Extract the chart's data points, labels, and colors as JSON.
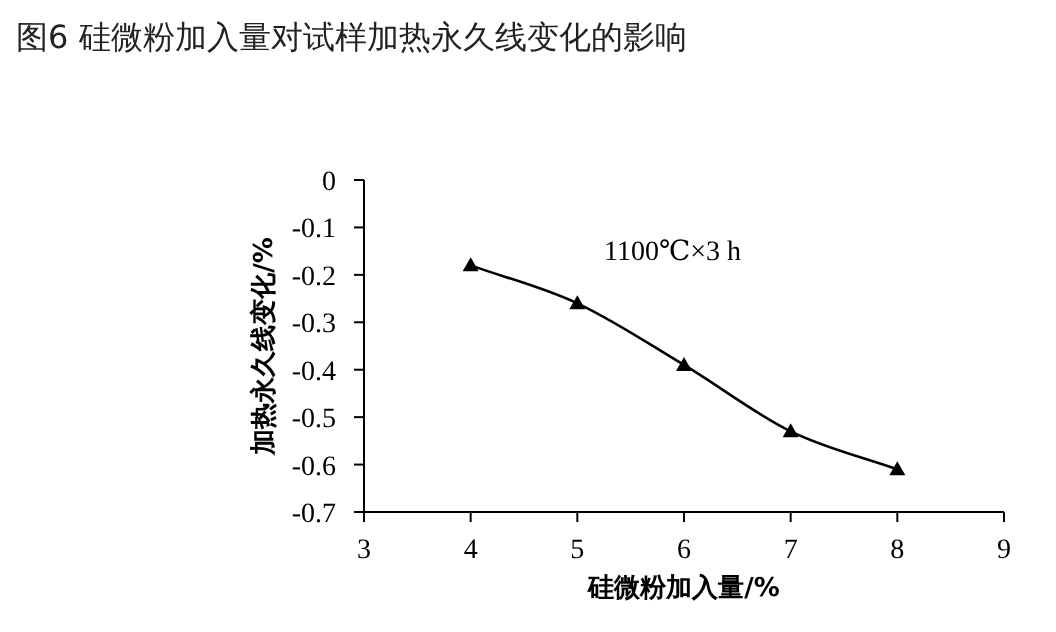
{
  "chart_data": {
    "type": "line",
    "title": "图6 硅微粉加入量对试样加热永久线变化的影响",
    "xlabel": "硅微粉加入量/%",
    "ylabel": "加热永久线变化/%",
    "annotations": [
      "1100℃×3 h"
    ],
    "x": [
      4,
      5,
      6,
      7,
      8
    ],
    "series": [
      {
        "color": "#000000",
        "values": [
          -0.18,
          -0.26,
          -0.39,
          -0.53,
          -0.61
        ]
      }
    ],
    "xlim": [
      3,
      9
    ],
    "xticks": [
      3,
      4,
      5,
      6,
      7,
      8,
      9
    ],
    "ylim": [
      -0.7,
      0
    ],
    "yticks": [
      0,
      -0.1,
      -0.2,
      -0.3,
      -0.4,
      -0.5,
      -0.6,
      -0.7
    ],
    "marker": "triangle",
    "line_style": "solid"
  }
}
